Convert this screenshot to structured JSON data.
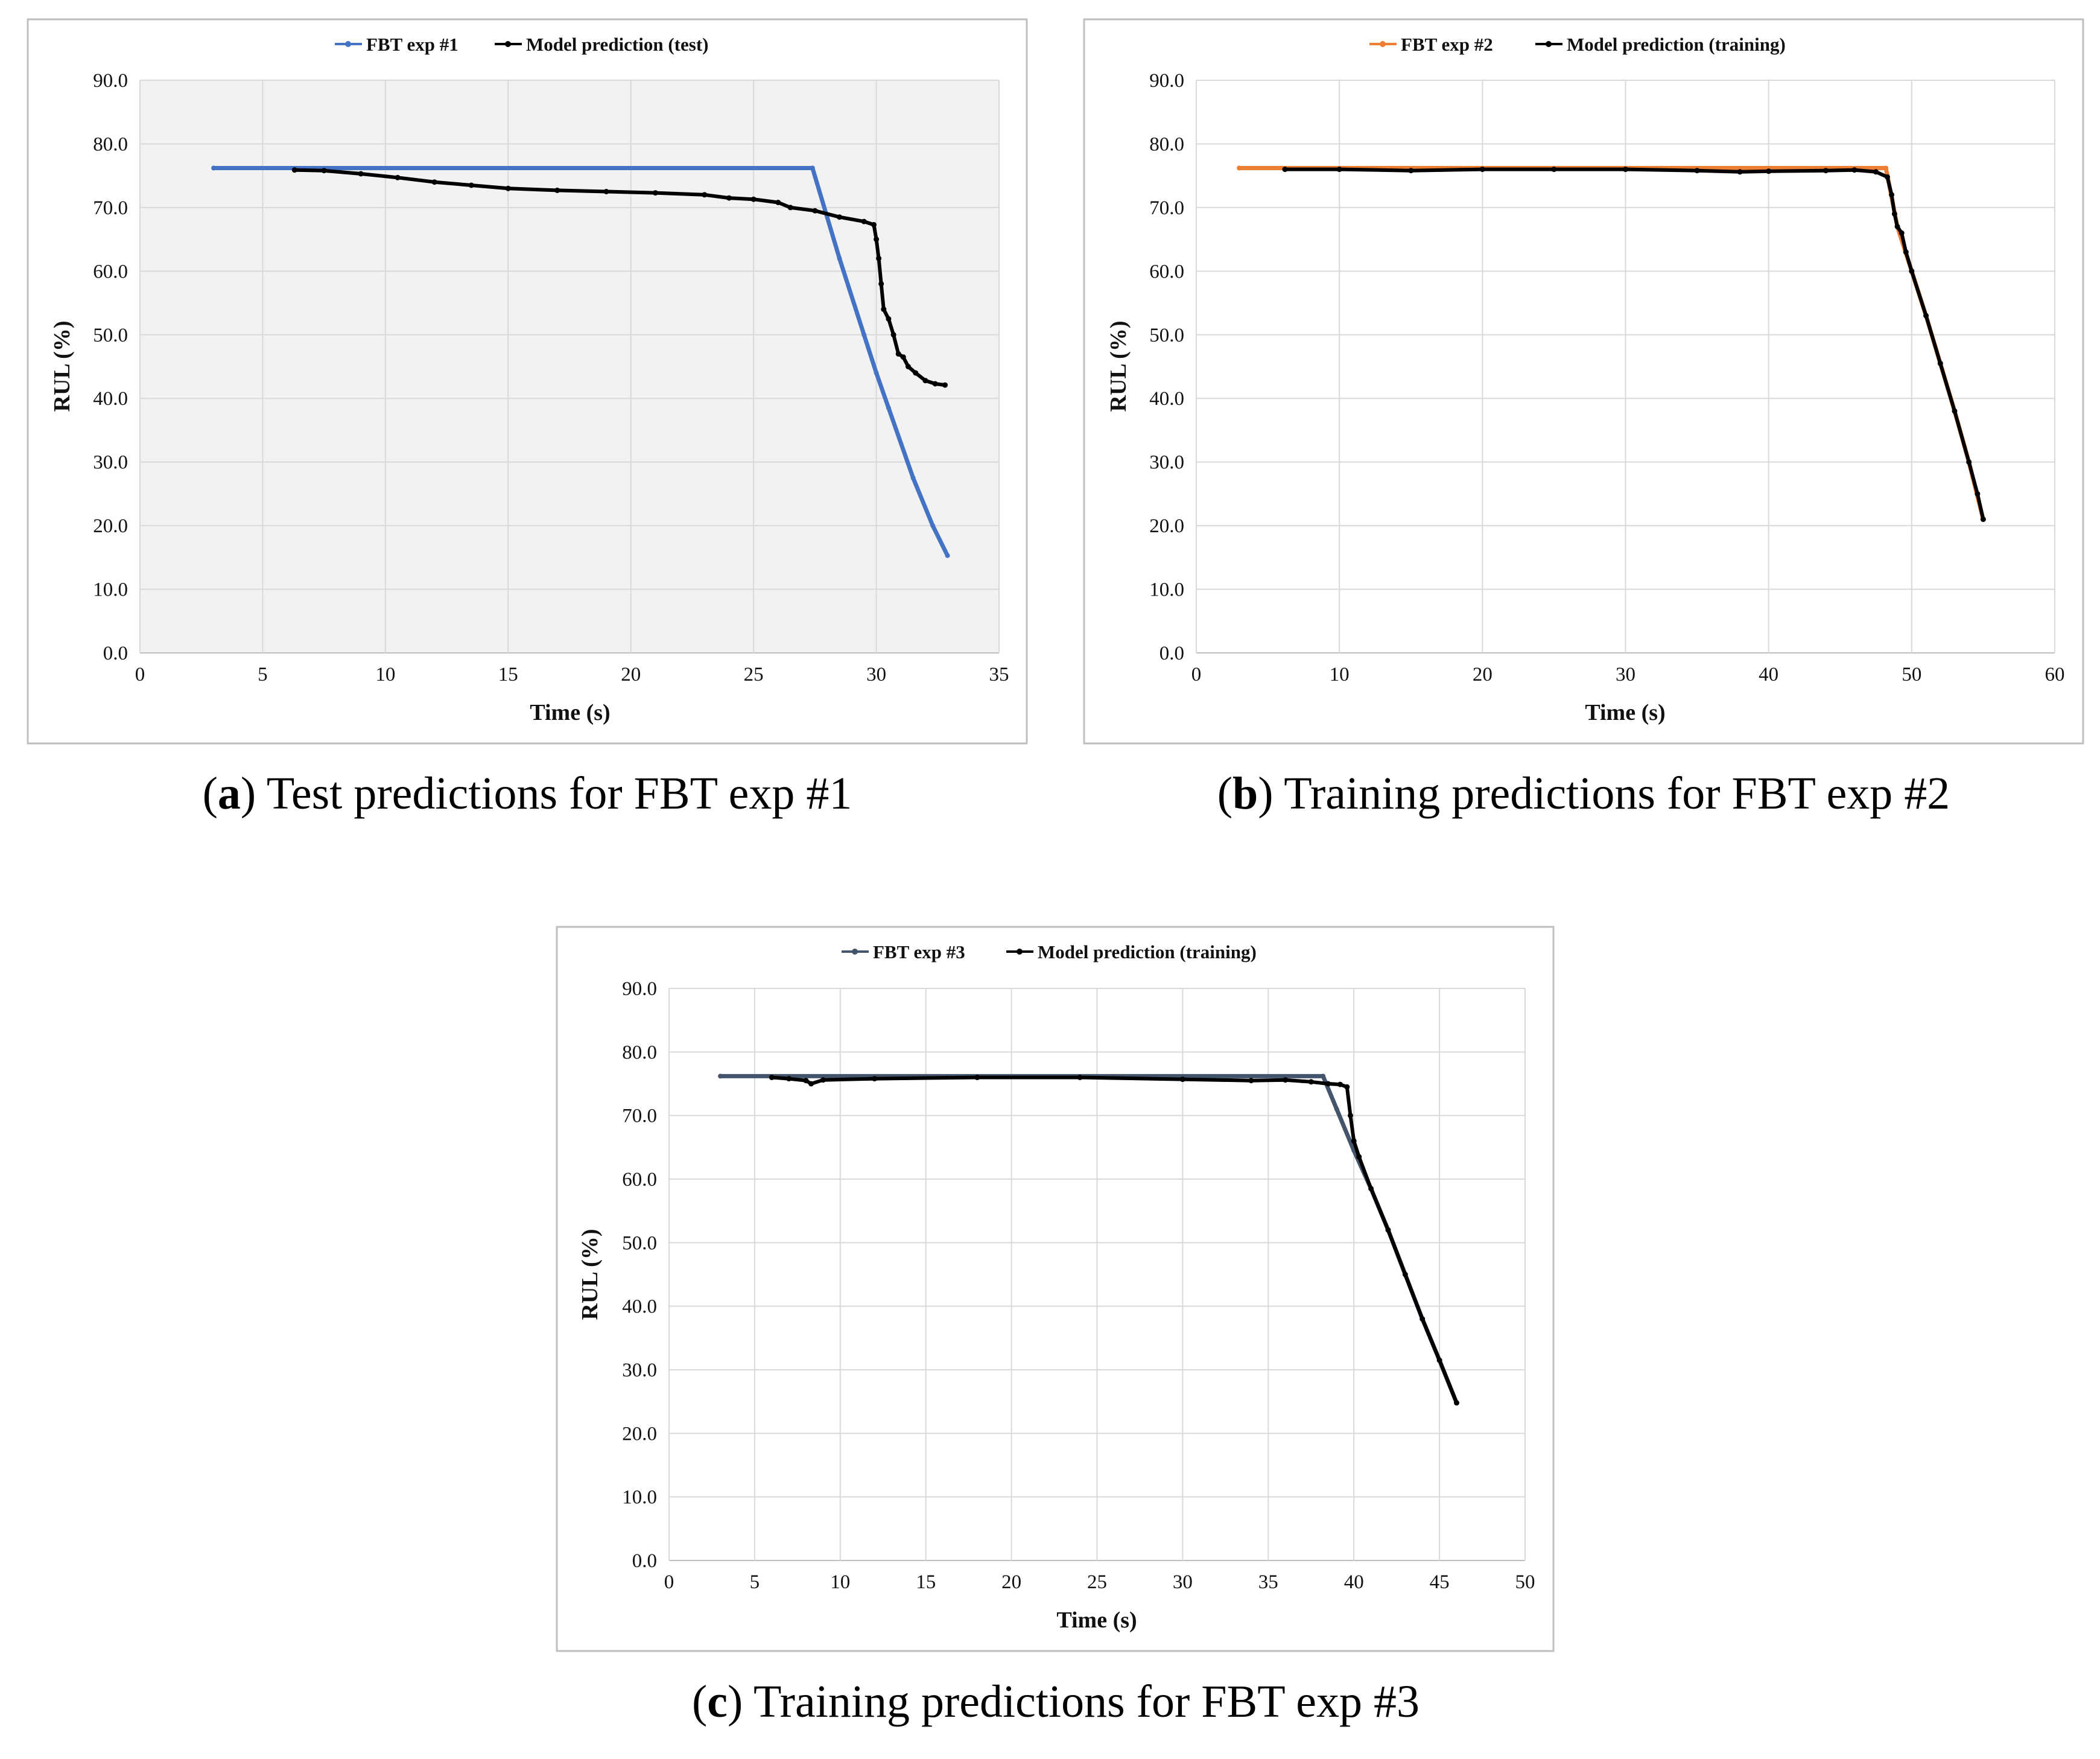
{
  "colors": {
    "exp1": "#4472C4",
    "exp2": "#ED7D31",
    "exp3": "#44546A",
    "prediction": "#000000",
    "plot_bg_a": "#F2F2F2",
    "grid": "#D9D9D9",
    "frame": "#BFBFBF"
  },
  "chart_data": [
    {
      "id": "a",
      "type": "line",
      "caption_letter": "a",
      "caption_text": "Test predictions for FBT exp #1",
      "xlabel": "Time (s)",
      "ylabel": "RUL (%)",
      "xlim": [
        0,
        35
      ],
      "xticks": [
        "0",
        "5",
        "10",
        "15",
        "20",
        "25",
        "30",
        "35"
      ],
      "ylim": [
        0,
        90
      ],
      "yticks": [
        "0.0",
        "10.0",
        "20.0",
        "30.0",
        "40.0",
        "50.0",
        "60.0",
        "70.0",
        "80.0",
        "90.0"
      ],
      "grid": true,
      "series": [
        {
          "name": "FBT exp #1",
          "color_key": "exp1",
          "x": [
            3.0,
            27.4,
            28.5,
            29.5,
            30.0,
            30.5,
            31.5,
            32.3,
            32.9
          ],
          "y": [
            76.2,
            76.2,
            62.0,
            50.0,
            44.0,
            38.5,
            27.5,
            20.0,
            15.3
          ]
        },
        {
          "name": "Model prediction (test)",
          "color_key": "prediction",
          "x": [
            6.3,
            7.5,
            9.0,
            10.5,
            12.0,
            13.5,
            15.0,
            17.0,
            19.0,
            21.0,
            23.0,
            24.0,
            25.0,
            26.0,
            26.5,
            27.5,
            28.5,
            29.5,
            29.9,
            30.0,
            30.1,
            30.2,
            30.3,
            30.5,
            30.7,
            30.9,
            31.1,
            31.3,
            31.6,
            32.0,
            32.4,
            32.8
          ],
          "y": [
            75.9,
            75.8,
            75.3,
            74.7,
            74.0,
            73.5,
            73.0,
            72.7,
            72.5,
            72.3,
            72.0,
            71.5,
            71.3,
            70.8,
            70.0,
            69.5,
            68.5,
            67.8,
            67.3,
            65.0,
            62.0,
            58.0,
            54.0,
            52.5,
            50.0,
            47.0,
            46.5,
            45.0,
            44.0,
            42.8,
            42.3,
            42.1
          ]
        }
      ]
    },
    {
      "id": "b",
      "type": "line",
      "caption_letter": "b",
      "caption_text": "Training predictions for FBT exp #2",
      "xlabel": "Time (s)",
      "ylabel": "RUL (%)",
      "xlim": [
        0,
        60
      ],
      "xticks": [
        "0",
        "10",
        "20",
        "30",
        "40",
        "50",
        "60"
      ],
      "ylim": [
        0,
        90
      ],
      "yticks": [
        "0.0",
        "10.0",
        "20.0",
        "30.0",
        "40.0",
        "50.0",
        "60.0",
        "70.0",
        "80.0",
        "90.0"
      ],
      "grid": true,
      "series": [
        {
          "name": "FBT exp #2",
          "color_key": "exp2",
          "x": [
            3.0,
            48.2,
            49.0,
            50.0,
            51.0,
            52.0,
            53.0,
            54.0,
            55.0
          ],
          "y": [
            76.2,
            76.2,
            67.0,
            60.0,
            53.0,
            45.5,
            38.0,
            30.0,
            21.0
          ]
        },
        {
          "name": "Model prediction (training)",
          "color_key": "prediction",
          "x": [
            6.2,
            10.0,
            15.0,
            20.0,
            25.0,
            30.0,
            35.0,
            38.0,
            40.0,
            44.0,
            46.0,
            47.5,
            48.3,
            48.6,
            48.8,
            49.0,
            49.3,
            49.6,
            50.0,
            51.0,
            52.0,
            53.0,
            54.0,
            54.6,
            55.0
          ],
          "y": [
            76.0,
            76.0,
            75.8,
            76.0,
            76.0,
            76.0,
            75.8,
            75.6,
            75.7,
            75.8,
            75.9,
            75.6,
            74.8,
            72.0,
            69.0,
            67.0,
            66.0,
            63.0,
            60.0,
            53.0,
            45.5,
            38.0,
            30.0,
            25.0,
            21.0
          ]
        }
      ]
    },
    {
      "id": "c",
      "type": "line",
      "caption_letter": "c",
      "caption_text": "Training predictions for FBT exp #3",
      "xlabel": "Time (s)",
      "ylabel": "RUL (%)",
      "xlim": [
        0,
        50
      ],
      "xticks": [
        "0",
        "5",
        "10",
        "15",
        "20",
        "25",
        "30",
        "35",
        "40",
        "45",
        "50"
      ],
      "ylim": [
        0,
        90
      ],
      "yticks": [
        "0.0",
        "10.0",
        "20.0",
        "30.0",
        "40.0",
        "50.0",
        "60.0",
        "70.0",
        "80.0",
        "90.0"
      ],
      "grid": true,
      "series": [
        {
          "name": "FBT exp #3",
          "color_key": "exp3",
          "x": [
            3.0,
            38.2,
            39.0,
            40.0,
            41.0,
            42.0,
            43.0,
            44.0,
            45.0,
            46.0
          ],
          "y": [
            76.2,
            76.2,
            71.0,
            64.5,
            58.5,
            52.0,
            45.0,
            38.0,
            31.5,
            24.8
          ]
        },
        {
          "name": "Model prediction (training)",
          "color_key": "prediction",
          "x": [
            6.0,
            7.0,
            8.0,
            8.3,
            9.0,
            12.0,
            18.0,
            24.0,
            30.0,
            34.0,
            36.0,
            37.5,
            38.5,
            39.2,
            39.6,
            39.8,
            40.0,
            40.3,
            41.0,
            42.0,
            43.0,
            44.0,
            45.0,
            46.0
          ],
          "y": [
            76.0,
            75.8,
            75.5,
            75.0,
            75.6,
            75.8,
            76.0,
            76.0,
            75.7,
            75.5,
            75.6,
            75.3,
            75.0,
            74.9,
            74.5,
            70.0,
            66.0,
            63.5,
            58.5,
            52.0,
            45.0,
            38.0,
            31.5,
            24.8
          ]
        }
      ]
    }
  ]
}
